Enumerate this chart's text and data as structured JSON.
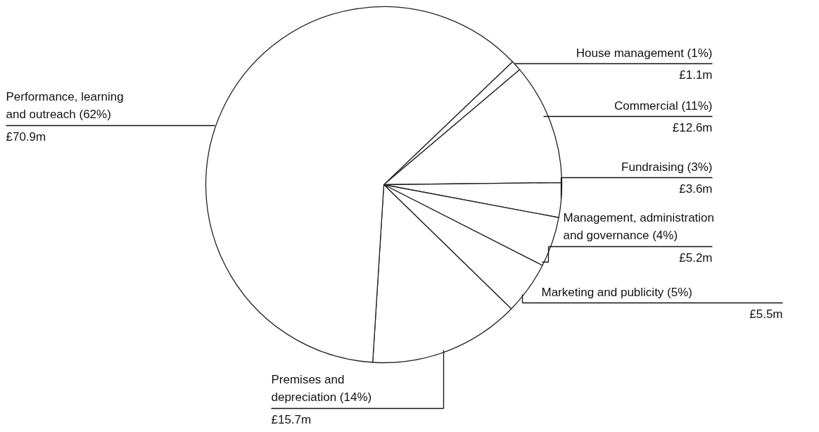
{
  "chart_data": {
    "type": "pie",
    "categories": [
      "House management (1%)",
      "Commercial (11%)",
      "Fundraising (3%)",
      "Management, administration and governance (4%)",
      "Marketing and publicity (5%)",
      "Premises and depreciation (14%)",
      "Performance, learning and outreach (62%)"
    ],
    "values": [
      1.1,
      12.6,
      3.6,
      5.2,
      5.5,
      15.7,
      70.9
    ],
    "colors": [
      "#ffffff",
      "#ffffff",
      "#ffffff",
      "#ffffff",
      "#ffffff",
      "#ffffff",
      "#ffffff"
    ],
    "value_labels": [
      "£1.1m",
      "£12.6m",
      "£3.6m",
      "£5.2m",
      "£5.5m",
      "£15.7m",
      "£70.9m"
    ]
  }
}
